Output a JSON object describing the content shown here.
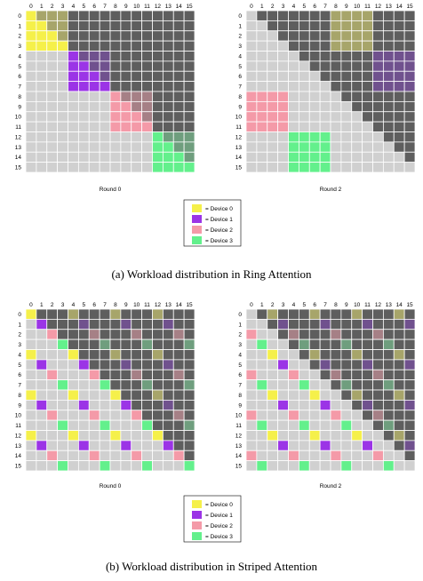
{
  "colors": {
    "empty": "#d0d0d0",
    "masked": "#5e5e5e",
    "grid_line": "#ffffff",
    "device_0": "#f5f04a",
    "device_1": "#9b34e6",
    "device_2": "#f49aa8",
    "device_3": "#63f08c",
    "tint_0": "#a7a56a",
    "tint_1": "#70518e",
    "tint_2": "#a68086",
    "tint_3": "#6f9e7e"
  },
  "ticks": [
    "0",
    "1",
    "2",
    "3",
    "4",
    "5",
    "6",
    "7",
    "8",
    "9",
    "10",
    "11",
    "12",
    "13",
    "14",
    "15"
  ],
  "legend": [
    {
      "label": "= Device 0",
      "color": "#f5f04a"
    },
    {
      "label": "= Device 1",
      "color": "#9b34e6"
    },
    {
      "label": "= Device 2",
      "color": "#f49aa8"
    },
    {
      "label": "= Device 3",
      "color": "#63f08c"
    }
  ],
  "sections": [
    {
      "caption": "(a) Workload distribution in Ring Attention",
      "panels": [
        {
          "label": "Round 0",
          "scheme": "ring",
          "round": 0
        },
        {
          "label": "Round 2",
          "scheme": "ring",
          "round": 2
        }
      ]
    },
    {
      "caption": "(b) Workload distribution in Striped Attention",
      "panels": [
        {
          "label": "Round 0",
          "scheme": "striped",
          "round": 0
        },
        {
          "label": "Round 2",
          "scheme": "striped",
          "round": 2
        }
      ]
    }
  ]
}
